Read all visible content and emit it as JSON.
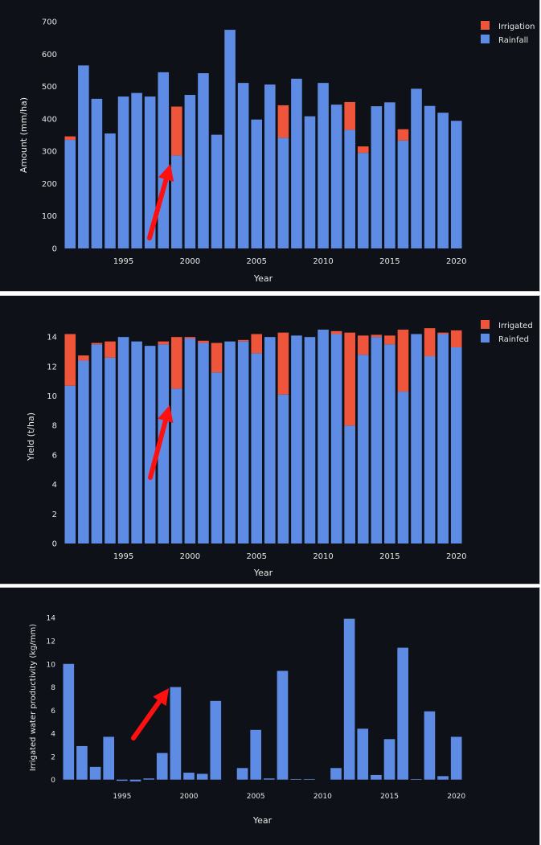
{
  "colors": {
    "background": "#0e1117",
    "blue": "#5e8ce4",
    "red": "#ef553b",
    "text": "#e6e6e6",
    "annotation_arrow": "#ff1010"
  },
  "chart_data": [
    {
      "type": "bar",
      "stacked": true,
      "xlabel": "Year",
      "ylabel": "Amount (mm/ha)",
      "ylim": [
        0,
        700
      ],
      "yticks": [
        0,
        100,
        200,
        300,
        400,
        500,
        600,
        700
      ],
      "xticks": [
        1995,
        2000,
        2005,
        2010,
        2015,
        2020
      ],
      "legend_position": "top-right",
      "x": [
        1991,
        1992,
        1993,
        1994,
        1995,
        1996,
        1997,
        1998,
        1999,
        2000,
        2001,
        2002,
        2003,
        2004,
        2005,
        2006,
        2007,
        2008,
        2009,
        2010,
        2011,
        2012,
        2013,
        2014,
        2015,
        2016,
        2017,
        2018,
        2019,
        2020
      ],
      "series": [
        {
          "name": "Rainfall",
          "color": "#5e8ce4",
          "values": [
            335,
            565,
            462,
            355,
            469,
            480,
            469,
            544,
            287,
            474,
            541,
            351,
            675,
            511,
            398,
            506,
            342,
            524,
            408,
            511,
            444,
            366,
            295,
            439,
            451,
            333,
            493,
            440,
            419,
            394
          ]
        },
        {
          "name": "Irrigation",
          "color": "#ef553b",
          "values": [
            11,
            0,
            0,
            0,
            0,
            0,
            0,
            0,
            151,
            0,
            0,
            0,
            0,
            0,
            0,
            0,
            100,
            0,
            0,
            0,
            0,
            86,
            20,
            0,
            0,
            35,
            0,
            0,
            0,
            0
          ]
        }
      ],
      "annotation": {
        "type": "arrow",
        "x": 1999
      }
    },
    {
      "type": "bar",
      "stacked": true,
      "xlabel": "Year",
      "ylabel": "Yield (t/ha)",
      "ylim": [
        0,
        14.5
      ],
      "yticks": [
        0,
        2,
        4,
        6,
        8,
        10,
        12,
        14
      ],
      "xticks": [
        1995,
        2000,
        2005,
        2010,
        2015,
        2020
      ],
      "legend_position": "top-right",
      "x": [
        1991,
        1992,
        1993,
        1994,
        1995,
        1996,
        1997,
        1998,
        1999,
        2000,
        2001,
        2002,
        2003,
        2004,
        2005,
        2006,
        2007,
        2008,
        2009,
        2010,
        2011,
        2012,
        2013,
        2014,
        2015,
        2016,
        2017,
        2018,
        2019,
        2020
      ],
      "series": [
        {
          "name": "Rainfed",
          "color": "#5e8ce4",
          "values": [
            10.7,
            12.4,
            13.5,
            12.6,
            14.0,
            13.7,
            13.4,
            13.5,
            10.5,
            13.9,
            13.6,
            11.6,
            13.7,
            13.7,
            12.9,
            14.0,
            10.1,
            14.1,
            14.0,
            14.5,
            14.2,
            8.0,
            12.8,
            14.0,
            13.5,
            10.3,
            14.2,
            12.7,
            14.2,
            13.3
          ]
        },
        {
          "name": "Irrigated",
          "color": "#ef553b",
          "values": [
            3.5,
            0.35,
            0.1,
            1.1,
            0,
            0,
            0,
            0.2,
            3.5,
            0.1,
            0.15,
            2.0,
            0,
            0.1,
            1.3,
            0,
            4.2,
            0,
            0,
            0,
            0.2,
            6.3,
            1.3,
            0.15,
            0.6,
            4.2,
            0,
            1.9,
            0.1,
            1.15
          ]
        }
      ],
      "annotation": {
        "type": "arrow",
        "x": 1999
      }
    },
    {
      "type": "bar",
      "xlabel": "Year",
      "ylabel": "Irrigated water productivity (kg/mm)",
      "ylim": [
        -0.3,
        14.5
      ],
      "yticks": [
        0,
        2,
        4,
        6,
        8,
        10,
        12,
        14
      ],
      "xticks": [
        1995,
        2000,
        2005,
        2010,
        2015,
        2020
      ],
      "x": [
        1991,
        1992,
        1993,
        1994,
        1995,
        1996,
        1997,
        1998,
        1999,
        2000,
        2001,
        2002,
        2003,
        2004,
        2005,
        2006,
        2007,
        2008,
        2009,
        2010,
        2011,
        2012,
        2013,
        2014,
        2015,
        2016,
        2017,
        2018,
        2019,
        2020
      ],
      "series": [
        {
          "name": "",
          "color": "#5e8ce4",
          "values": [
            10.0,
            2.9,
            1.1,
            3.7,
            -0.1,
            -0.15,
            0.1,
            2.3,
            8.0,
            0.6,
            0.5,
            6.8,
            0,
            1.0,
            4.3,
            0.1,
            9.4,
            0.05,
            0.05,
            0,
            1.0,
            13.9,
            4.4,
            0.4,
            3.5,
            11.4,
            0.05,
            5.9,
            0.3,
            3.7
          ]
        }
      ],
      "annotation": {
        "type": "arrow",
        "x": 1999
      }
    }
  ]
}
